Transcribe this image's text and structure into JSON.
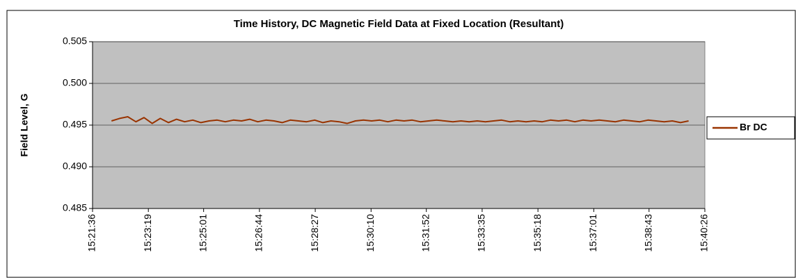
{
  "chart_data": {
    "type": "line",
    "title": "Time History, DC Magnetic Field Data at Fixed Location (Resultant)",
    "y_label": "Field Level, G",
    "x": [
      "15:22:11",
      "15:22:26",
      "15:22:41",
      "15:22:56",
      "15:23:11",
      "15:23:26",
      "15:23:41",
      "15:23:56",
      "15:24:11",
      "15:24:26",
      "15:24:41",
      "15:24:56",
      "15:25:11",
      "15:25:26",
      "15:25:41",
      "15:25:56",
      "15:26:11",
      "15:26:26",
      "15:26:41",
      "15:26:56",
      "15:27:11",
      "15:27:26",
      "15:27:41",
      "15:27:56",
      "15:28:11",
      "15:28:26",
      "15:28:41",
      "15:28:56",
      "15:29:11",
      "15:29:26",
      "15:29:41",
      "15:29:56",
      "15:30:11",
      "15:30:26",
      "15:30:41",
      "15:30:56",
      "15:31:11",
      "15:31:26",
      "15:31:41",
      "15:31:56",
      "15:32:11",
      "15:32:26",
      "15:32:41",
      "15:32:56",
      "15:33:11",
      "15:33:26",
      "15:33:41",
      "15:33:56",
      "15:34:11",
      "15:34:26",
      "15:34:41",
      "15:34:56",
      "15:35:11",
      "15:35:26",
      "15:35:41",
      "15:35:56",
      "15:36:11",
      "15:36:26",
      "15:36:41",
      "15:36:56",
      "15:37:11",
      "15:37:26",
      "15:37:41",
      "15:37:56",
      "15:38:11",
      "15:38:26",
      "15:38:41",
      "15:38:56",
      "15:39:11",
      "15:39:26",
      "15:39:41",
      "15:39:56"
    ],
    "series": [
      {
        "name": "Br DC",
        "color": "#993300",
        "values": [
          0.4955,
          0.4958,
          0.496,
          0.4954,
          0.4959,
          0.4952,
          0.4958,
          0.4953,
          0.4957,
          0.4954,
          0.4956,
          0.4953,
          0.4955,
          0.4956,
          0.4954,
          0.4956,
          0.4955,
          0.4957,
          0.4954,
          0.4956,
          0.4955,
          0.4953,
          0.4956,
          0.4955,
          0.4954,
          0.4956,
          0.4953,
          0.4955,
          0.4954,
          0.4952,
          0.4955,
          0.4956,
          0.4955,
          0.4956,
          0.4954,
          0.4956,
          0.4955,
          0.4956,
          0.4954,
          0.4955,
          0.4956,
          0.4955,
          0.4954,
          0.4955,
          0.4954,
          0.4955,
          0.4954,
          0.4955,
          0.4956,
          0.4954,
          0.4955,
          0.4954,
          0.4955,
          0.4954,
          0.4956,
          0.4955,
          0.4956,
          0.4954,
          0.4956,
          0.4955,
          0.4956,
          0.4955,
          0.4954,
          0.4956,
          0.4955,
          0.4954,
          0.4956,
          0.4955,
          0.4954,
          0.4955,
          0.4953,
          0.4955
        ]
      }
    ],
    "xlim": [
      "15:21:36",
      "15:40:26"
    ],
    "xticks": [
      "15:21:36",
      "15:23:19",
      "15:25:01",
      "15:26:44",
      "15:28:27",
      "15:30:10",
      "15:31:52",
      "15:33:35",
      "15:35:18",
      "15:37:01",
      "15:38:43",
      "15:40:26"
    ],
    "ylim": [
      0.485,
      0.505
    ],
    "yticks": [
      0.485,
      {
        "value": 0.49,
        "label": "0.490"
      },
      0.495,
      {
        "value": 0.5,
        "label": "0.500"
      },
      0.505
    ],
    "grid": true,
    "legend": "right"
  }
}
